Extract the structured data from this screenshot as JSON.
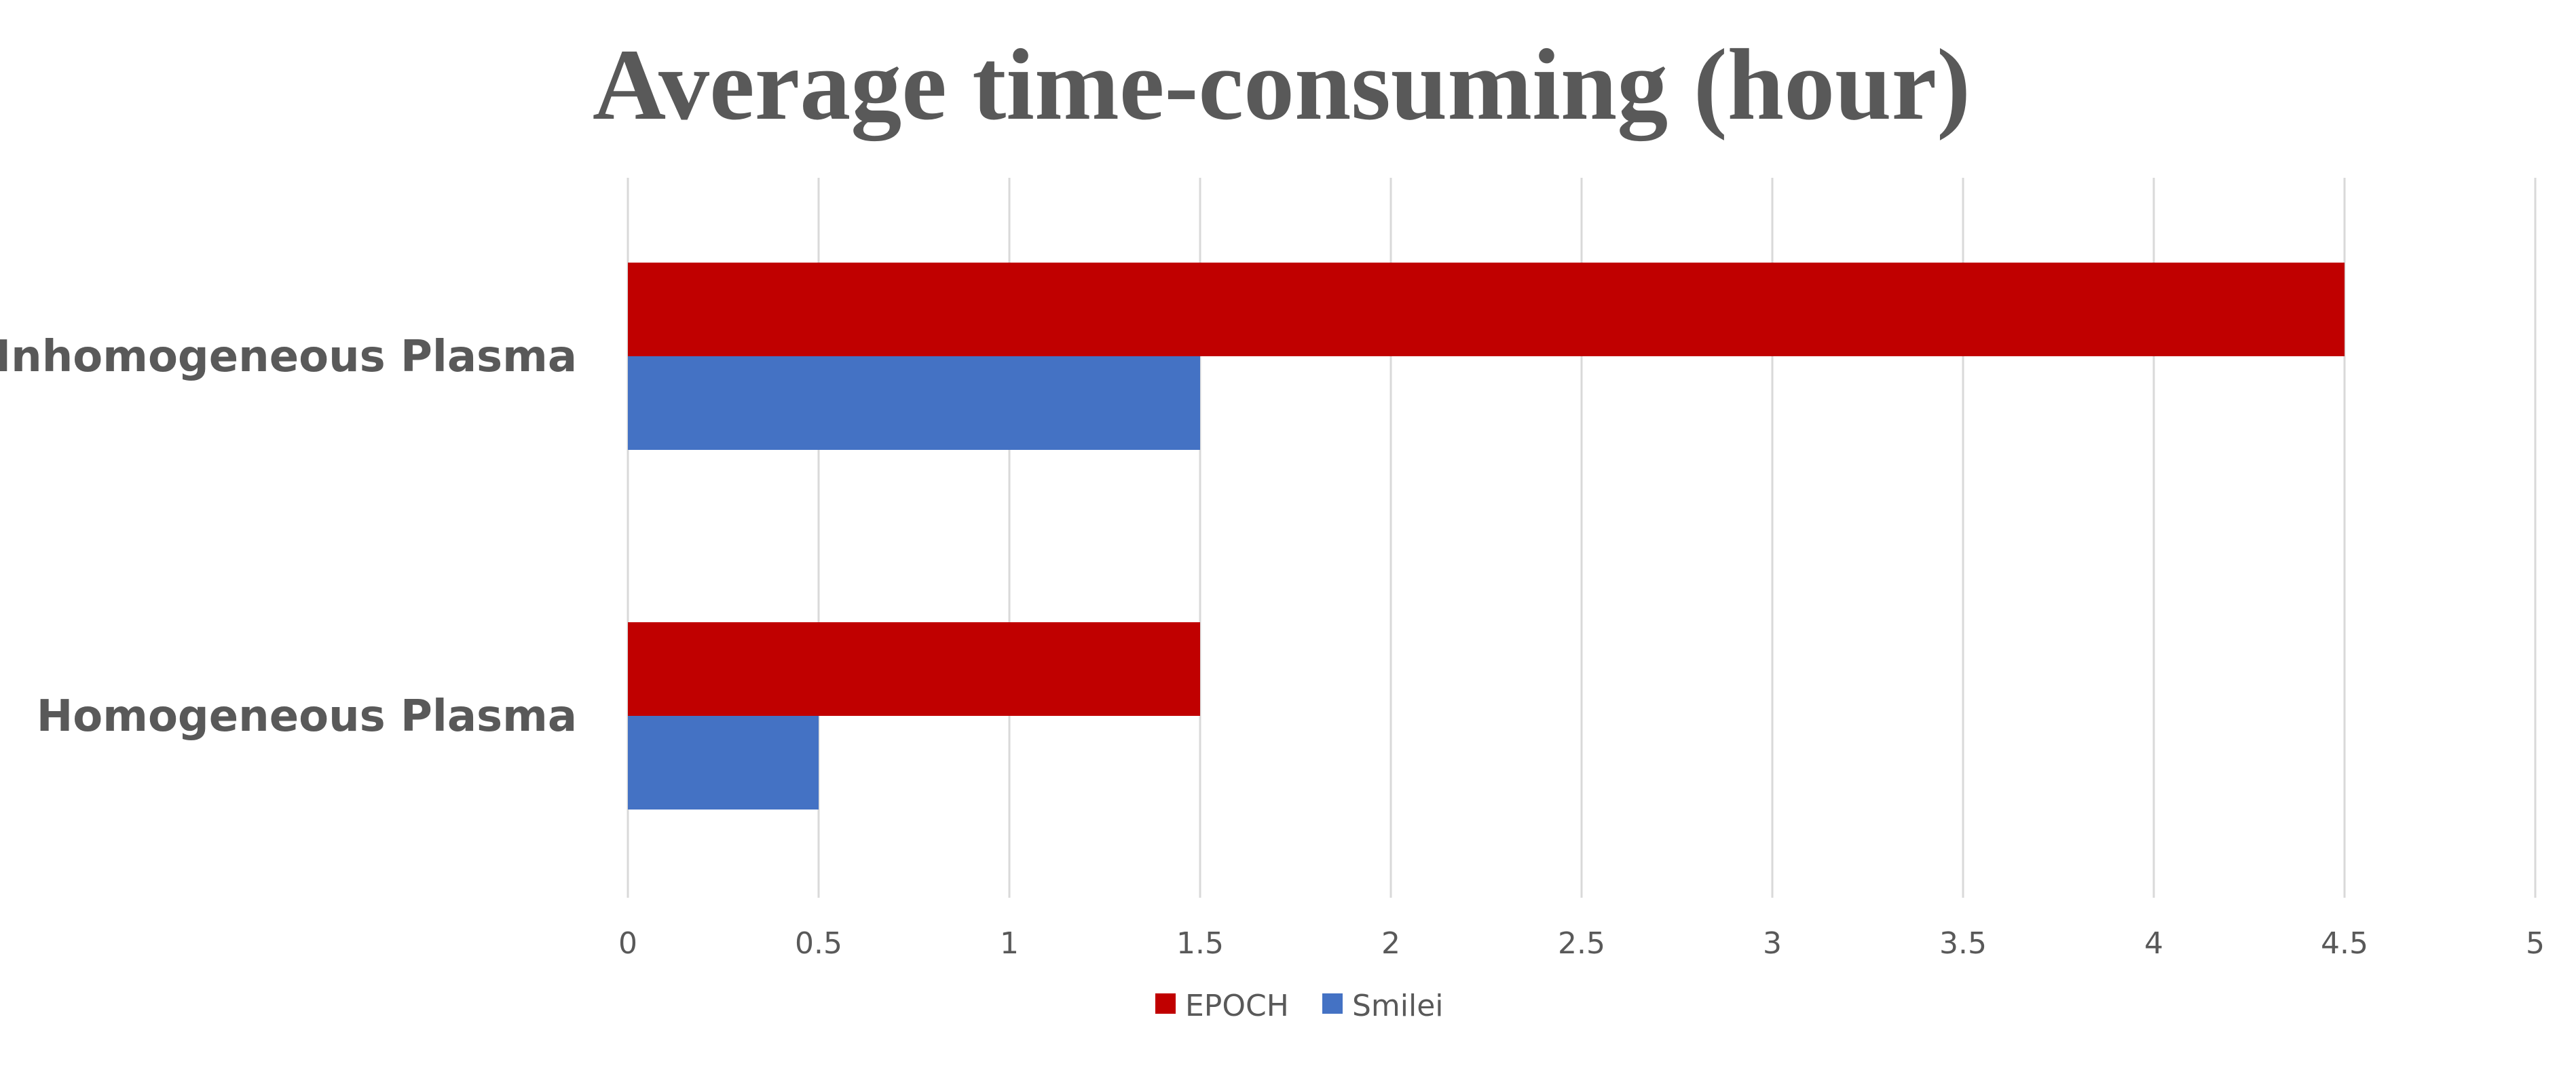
{
  "chart_data": {
    "type": "bar",
    "orientation": "horizontal",
    "title": "Average time-consuming (hour)",
    "categories": [
      "Inhomogeneous Plasma",
      "Homogeneous Plasma"
    ],
    "series": [
      {
        "name": "EPOCH",
        "color": "#c00000",
        "values": [
          4.5,
          1.5
        ]
      },
      {
        "name": "Smilei",
        "color": "#4472c4",
        "values": [
          1.5,
          0.5
        ]
      }
    ],
    "xlim": [
      0,
      5
    ],
    "xticks": [
      0,
      0.5,
      1,
      1.5,
      2,
      2.5,
      3,
      3.5,
      4,
      4.5,
      5
    ],
    "xtick_labels": [
      "0",
      "0.5",
      "1",
      "1.5",
      "2",
      "2.5",
      "3",
      "3.5",
      "4",
      "4.5",
      "5"
    ],
    "grid": true,
    "legend_position": "bottom"
  }
}
